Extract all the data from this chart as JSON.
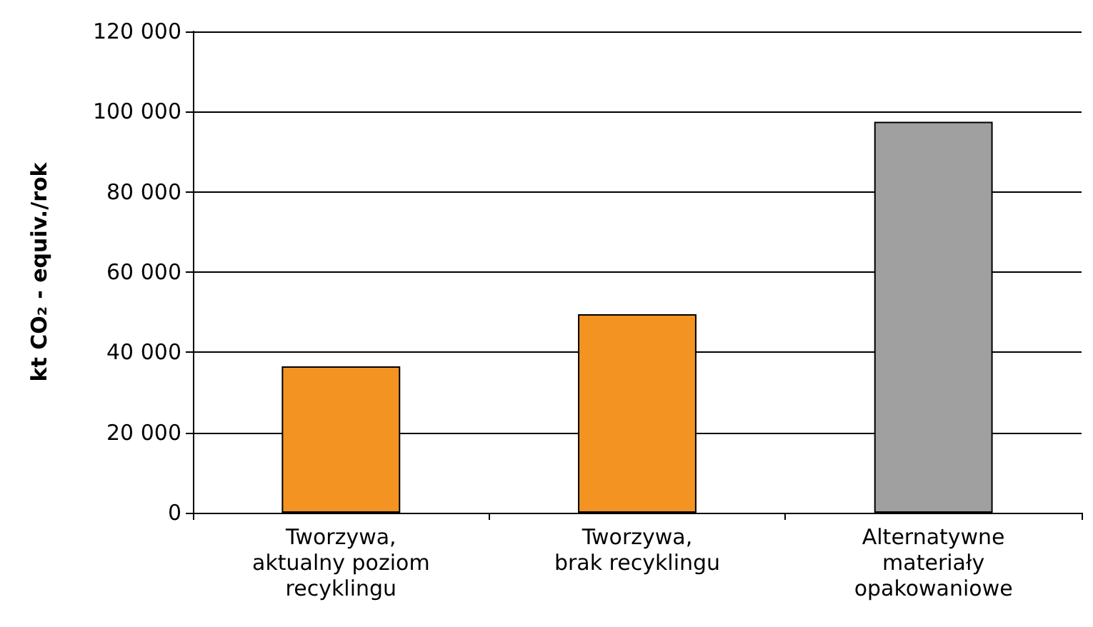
{
  "chart_data": {
    "type": "bar",
    "ylabel": "kt CO₂ - equiv./rok",
    "categories": [
      "Tworzywa,\naktualny poziom\nrecyklingu",
      "Tworzywa,\nbrak recyklingu",
      "Alternatywne\nmateriały\nopakowaniowe"
    ],
    "values": [
      36500,
      49500,
      97500
    ],
    "colors": [
      "#f39321",
      "#f39321",
      "#a0a0a0"
    ],
    "ylim": [
      0,
      120000
    ],
    "yticks": [
      {
        "value": 0,
        "label": "0"
      },
      {
        "value": 20000,
        "label": "20 000"
      },
      {
        "value": 40000,
        "label": "40 000"
      },
      {
        "value": 60000,
        "label": "60 000"
      },
      {
        "value": 80000,
        "label": "80 000"
      },
      {
        "value": 100000,
        "label": "100 000"
      },
      {
        "value": 120000,
        "label": "120 000"
      }
    ],
    "grid": "y"
  }
}
